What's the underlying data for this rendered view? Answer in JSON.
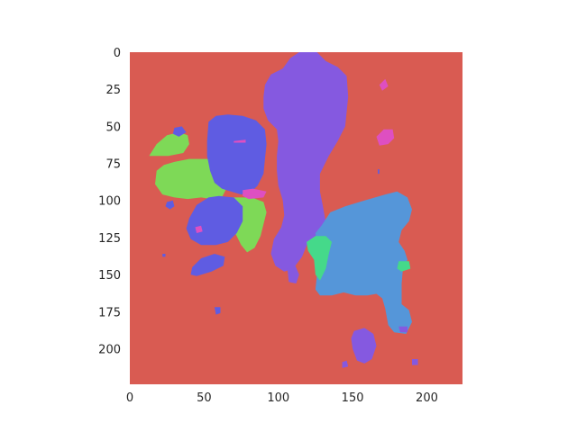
{
  "chart_data": {
    "type": "heatmap",
    "title": "",
    "xlabel": "",
    "ylabel": "",
    "xlim": [
      0,
      224
    ],
    "ylim": [
      224,
      0
    ],
    "grid": false,
    "x_ticks": [
      0,
      50,
      100,
      150,
      200
    ],
    "y_ticks": [
      0,
      25,
      50,
      75,
      100,
      125,
      150,
      175,
      200
    ],
    "background_class_color": "#d95b52",
    "class_colors": {
      "red": "#d95b52",
      "violet": "#8559e0",
      "indigo": "#5f5ce2",
      "green": "#7ed957",
      "blue": "#5596d9",
      "teal": "#45d98a",
      "magenta": "#de4fc1"
    },
    "regions": [
      {
        "class": "violet",
        "points": [
          [
            103,
            11
          ],
          [
            108,
            4
          ],
          [
            114,
            0
          ],
          [
            126,
            0
          ],
          [
            132,
            6
          ],
          [
            140,
            10
          ],
          [
            146,
            16
          ],
          [
            147,
            30
          ],
          [
            145,
            50
          ],
          [
            140,
            60
          ],
          [
            134,
            70
          ],
          [
            128,
            82
          ],
          [
            128,
            94
          ],
          [
            130,
            104
          ],
          [
            132,
            115
          ],
          [
            128,
            122
          ],
          [
            120,
            128
          ],
          [
            116,
            138
          ],
          [
            110,
            146
          ],
          [
            104,
            148
          ],
          [
            98,
            144
          ],
          [
            95,
            136
          ],
          [
            97,
            126
          ],
          [
            102,
            118
          ],
          [
            104,
            110
          ],
          [
            103,
            100
          ],
          [
            100,
            90
          ],
          [
            99,
            80
          ],
          [
            99,
            70
          ],
          [
            100,
            60
          ],
          [
            99,
            52
          ],
          [
            93,
            46
          ],
          [
            90,
            38
          ],
          [
            90,
            30
          ],
          [
            91,
            22
          ],
          [
            95,
            15
          ]
        ]
      },
      {
        "class": "violet",
        "points": [
          [
            106,
            145
          ],
          [
            111,
            143
          ],
          [
            114,
            150
          ],
          [
            112,
            156
          ],
          [
            107,
            155
          ]
        ]
      },
      {
        "class": "green",
        "points": [
          [
            13,
            70
          ],
          [
            18,
            62
          ],
          [
            25,
            56
          ],
          [
            33,
            54
          ],
          [
            39,
            56
          ],
          [
            40,
            62
          ],
          [
            36,
            68
          ],
          [
            26,
            70
          ]
        ]
      },
      {
        "class": "green",
        "points": [
          [
            18,
            80
          ],
          [
            23,
            76
          ],
          [
            30,
            74
          ],
          [
            40,
            72
          ],
          [
            52,
            72
          ],
          [
            62,
            74
          ],
          [
            67,
            80
          ],
          [
            66,
            90
          ],
          [
            62,
            98
          ],
          [
            55,
            99
          ],
          [
            48,
            98
          ],
          [
            39,
            99
          ],
          [
            30,
            98
          ],
          [
            22,
            96
          ],
          [
            17,
            89
          ]
        ]
      },
      {
        "class": "green",
        "points": [
          [
            60,
            100
          ],
          [
            68,
            98
          ],
          [
            82,
            98
          ],
          [
            90,
            101
          ],
          [
            92,
            108
          ],
          [
            90,
            116
          ],
          [
            88,
            124
          ],
          [
            84,
            132
          ],
          [
            79,
            135
          ],
          [
            75,
            130
          ],
          [
            70,
            120
          ],
          [
            64,
            110
          ]
        ]
      },
      {
        "class": "indigo",
        "points": [
          [
            53,
            47
          ],
          [
            58,
            43
          ],
          [
            66,
            42
          ],
          [
            76,
            43
          ],
          [
            85,
            46
          ],
          [
            91,
            52
          ],
          [
            92,
            62
          ],
          [
            91,
            72
          ],
          [
            90,
            82
          ],
          [
            86,
            90
          ],
          [
            82,
            94
          ],
          [
            75,
            96
          ],
          [
            68,
            94
          ],
          [
            62,
            92
          ],
          [
            57,
            88
          ],
          [
            54,
            80
          ],
          [
            52,
            70
          ],
          [
            52,
            60
          ]
        ]
      },
      {
        "class": "indigo",
        "points": [
          [
            40,
            112
          ],
          [
            45,
            103
          ],
          [
            53,
            98
          ],
          [
            60,
            97
          ],
          [
            70,
            98
          ],
          [
            76,
            104
          ],
          [
            76,
            114
          ],
          [
            72,
            122
          ],
          [
            66,
            128
          ],
          [
            58,
            130
          ],
          [
            48,
            130
          ],
          [
            41,
            126
          ],
          [
            38,
            119
          ]
        ]
      },
      {
        "class": "indigo",
        "points": [
          [
            42,
            145
          ],
          [
            48,
            139
          ],
          [
            57,
            136
          ],
          [
            64,
            138
          ],
          [
            63,
            144
          ],
          [
            55,
            148
          ],
          [
            45,
            151
          ],
          [
            41,
            150
          ]
        ]
      },
      {
        "class": "indigo",
        "points": [
          [
            57,
            172
          ],
          [
            61,
            172
          ],
          [
            61,
            176
          ],
          [
            58,
            177
          ]
        ]
      },
      {
        "class": "indigo",
        "points": [
          [
            30,
            51
          ],
          [
            35,
            50
          ],
          [
            38,
            54
          ],
          [
            33,
            57
          ],
          [
            29,
            55
          ]
        ]
      },
      {
        "class": "indigo",
        "points": [
          [
            25,
            101
          ],
          [
            29,
            100
          ],
          [
            30,
            104
          ],
          [
            27,
            106
          ],
          [
            24,
            104
          ]
        ]
      },
      {
        "class": "indigo",
        "points": [
          [
            22,
            136
          ],
          [
            24,
            136
          ],
          [
            24,
            138
          ],
          [
            22,
            138
          ]
        ]
      },
      {
        "class": "indigo",
        "points": [
          [
            167,
            79
          ],
          [
            168,
            79
          ],
          [
            168,
            82
          ],
          [
            167,
            82
          ]
        ]
      },
      {
        "class": "blue",
        "points": [
          [
            129,
            117
          ],
          [
            135,
            108
          ],
          [
            145,
            104
          ],
          [
            158,
            100
          ],
          [
            172,
            96
          ],
          [
            180,
            94
          ],
          [
            187,
            98
          ],
          [
            190,
            106
          ],
          [
            188,
            114
          ],
          [
            183,
            120
          ],
          [
            181,
            128
          ],
          [
            185,
            134
          ],
          [
            187,
            140
          ],
          [
            184,
            145
          ],
          [
            183,
            156
          ],
          [
            183,
            166
          ],
          [
            183,
            170
          ],
          [
            188,
            174
          ],
          [
            190,
            182
          ],
          [
            186,
            190
          ],
          [
            178,
            189
          ],
          [
            174,
            184
          ],
          [
            172,
            173
          ],
          [
            170,
            166
          ],
          [
            166,
            163
          ],
          [
            160,
            164
          ],
          [
            152,
            164
          ],
          [
            144,
            162
          ],
          [
            136,
            164
          ],
          [
            128,
            164
          ],
          [
            125,
            160
          ],
          [
            126,
            150
          ],
          [
            125,
            140
          ],
          [
            126,
            130
          ],
          [
            125,
            122
          ]
        ]
      },
      {
        "class": "teal",
        "points": [
          [
            119,
            128
          ],
          [
            125,
            124
          ],
          [
            132,
            124
          ],
          [
            136,
            128
          ],
          [
            134,
            136
          ],
          [
            132,
            146
          ],
          [
            128,
            154
          ],
          [
            125,
            150
          ],
          [
            124,
            140
          ],
          [
            120,
            134
          ]
        ]
      },
      {
        "class": "teal",
        "points": [
          [
            181,
            141
          ],
          [
            188,
            141
          ],
          [
            189,
            146
          ],
          [
            183,
            148
          ],
          [
            180,
            146
          ]
        ]
      },
      {
        "class": "violet",
        "points": [
          [
            151,
            188
          ],
          [
            158,
            186
          ],
          [
            164,
            190
          ],
          [
            166,
            198
          ],
          [
            163,
            207
          ],
          [
            158,
            210
          ],
          [
            153,
            208
          ],
          [
            150,
            200
          ],
          [
            149,
            193
          ]
        ]
      },
      {
        "class": "violet",
        "points": [
          [
            143,
            209
          ],
          [
            146,
            208
          ],
          [
            147,
            212
          ],
          [
            143,
            213
          ]
        ]
      },
      {
        "class": "violet",
        "points": [
          [
            181,
            185
          ],
          [
            187,
            185
          ],
          [
            187,
            189
          ],
          [
            182,
            189
          ]
        ]
      },
      {
        "class": "violet",
        "points": [
          [
            190,
            207
          ],
          [
            194,
            207
          ],
          [
            194,
            211
          ],
          [
            190,
            211
          ]
        ]
      },
      {
        "class": "magenta",
        "points": [
          [
            166,
            57
          ],
          [
            171,
            52
          ],
          [
            177,
            52
          ],
          [
            178,
            58
          ],
          [
            174,
            62
          ],
          [
            168,
            63
          ]
        ]
      },
      {
        "class": "magenta",
        "points": [
          [
            168,
            22
          ],
          [
            172,
            18
          ],
          [
            174,
            23
          ],
          [
            170,
            26
          ]
        ]
      },
      {
        "class": "magenta",
        "points": [
          [
            76,
            93
          ],
          [
            83,
            92
          ],
          [
            92,
            94
          ],
          [
            90,
            98
          ],
          [
            80,
            99
          ],
          [
            76,
            97
          ]
        ]
      },
      {
        "class": "magenta",
        "points": [
          [
            70,
            60
          ],
          [
            78,
            59
          ],
          [
            78,
            61
          ],
          [
            70,
            61
          ]
        ]
      },
      {
        "class": "magenta",
        "points": [
          [
            44,
            118
          ],
          [
            48,
            117
          ],
          [
            49,
            121
          ],
          [
            45,
            122
          ]
        ]
      }
    ]
  }
}
